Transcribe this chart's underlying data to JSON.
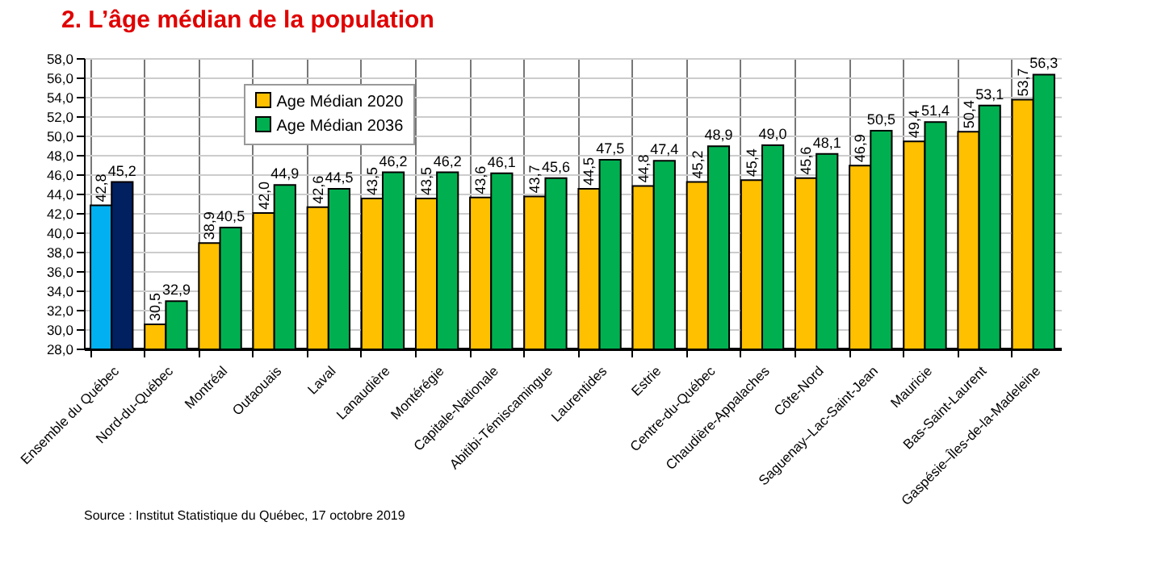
{
  "chart_data": {
    "type": "bar",
    "title": "2.  L’âge médian de la population",
    "categories": [
      "Ensemble du Québec",
      "Nord-du-Québec",
      "Montréal",
      "Outaouais",
      "Laval",
      "Lanaudière",
      "Montérégie",
      "Capitale-Nationale",
      "Abitibi-Témiscamingue",
      "Laurentides",
      "Estrie",
      "Centre-du-Québec",
      "Chaudière-Appalaches",
      "Côte-Nord",
      "Saguenay–Lac-Saint-Jean",
      "Mauricie",
      "Bas-Saint-Laurent",
      "Gaspésie–Îles-de-la-Madeleine"
    ],
    "series": [
      {
        "name": "Age Médian 2020",
        "color": "#ffc000",
        "colors": [
          "#00b0f0",
          "#ffc000",
          "#ffc000",
          "#ffc000",
          "#ffc000",
          "#ffc000",
          "#ffc000",
          "#ffc000",
          "#ffc000",
          "#ffc000",
          "#ffc000",
          "#ffc000",
          "#ffc000",
          "#ffc000",
          "#ffc000",
          "#ffc000",
          "#ffc000",
          "#ffc000"
        ],
        "values": [
          42.8,
          30.5,
          38.9,
          42.0,
          42.6,
          43.5,
          43.5,
          43.6,
          43.7,
          44.5,
          44.8,
          45.2,
          45.4,
          45.6,
          46.9,
          49.4,
          50.4,
          53.7
        ],
        "value_labels": [
          "42,8",
          "30,5",
          "38,9",
          "42,0",
          "42,6",
          "43,5",
          "43,5",
          "43,6",
          "43,7",
          "44,5",
          "44,8",
          "45,2",
          "45,4",
          "45,6",
          "46,9",
          "49,4",
          "50,4",
          "53,7"
        ]
      },
      {
        "name": "Age Médian 2036",
        "color": "#00b050",
        "colors": [
          "#002060",
          "#00b050",
          "#00b050",
          "#00b050",
          "#00b050",
          "#00b050",
          "#00b050",
          "#00b050",
          "#00b050",
          "#00b050",
          "#00b050",
          "#00b050",
          "#00b050",
          "#00b050",
          "#00b050",
          "#00b050",
          "#00b050",
          "#00b050"
        ],
        "values": [
          45.2,
          32.9,
          40.5,
          44.9,
          44.5,
          46.2,
          46.2,
          46.1,
          45.6,
          47.5,
          47.4,
          48.9,
          49.0,
          48.1,
          50.5,
          51.4,
          53.1,
          56.3
        ],
        "value_labels": [
          "45,2",
          "32,9",
          "40,5",
          "44,9",
          "44,5",
          "46,2",
          "46,2",
          "46,1",
          "45,6",
          "47,5",
          "47,4",
          "48,9",
          "49,0",
          "48,1",
          "50,5",
          "51,4",
          "53,1",
          "56,3"
        ]
      }
    ],
    "ylim": [
      28,
      58
    ],
    "yticks": [
      {
        "value": 28,
        "label": "28,0"
      },
      {
        "value": 30,
        "label": "30,0"
      },
      {
        "value": 32,
        "label": "32,0"
      },
      {
        "value": 34,
        "label": "34,0"
      },
      {
        "value": 36,
        "label": "36,0"
      },
      {
        "value": 38,
        "label": "38,0"
      },
      {
        "value": 40,
        "label": "40,0"
      },
      {
        "value": 42,
        "label": "42,0"
      },
      {
        "value": 44,
        "label": "44,0"
      },
      {
        "value": 46,
        "label": "46,0"
      },
      {
        "value": 48,
        "label": "48,0"
      },
      {
        "value": 50,
        "label": "50,0"
      },
      {
        "value": 52,
        "label": "52,0"
      },
      {
        "value": 54,
        "label": "54,0"
      },
      {
        "value": 56,
        "label": "56,0"
      },
      {
        "value": 58,
        "label": "58,0"
      }
    ],
    "grid": true,
    "legend": "top left",
    "annotations": [
      "Source : Institut Statistique du Québec, 17 octobre 2019"
    ]
  }
}
